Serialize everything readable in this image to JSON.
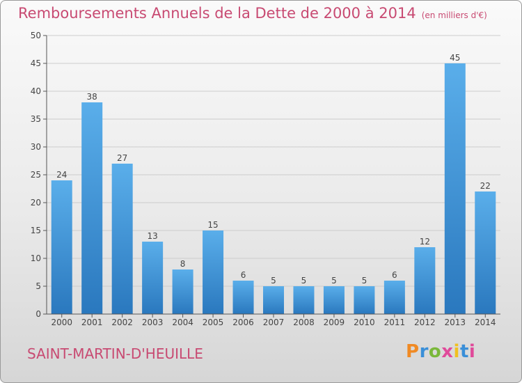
{
  "title": "Remboursements Annuels de la Dette de 2000 à 2014",
  "subtitle": "(en milliers d'€)",
  "place": "SAINT-MARTIN-D'HEUILLE",
  "logo": {
    "text": "Proxiti",
    "colors": [
      "#f08a24",
      "#3a8fd8",
      "#7ab83a",
      "#e04a9a",
      "#f0c020",
      "#3a8fd8",
      "#e04a9a"
    ]
  },
  "colors": {
    "title": "#c84a72",
    "bar_top": "#5aaeea",
    "bar_bottom": "#2a78be",
    "axis": "#555555",
    "grid": "#cccccc"
  },
  "chart_data": {
    "type": "bar",
    "title": "Remboursements Annuels de la Dette de 2000 à 2014",
    "subtitle": "(en milliers d'€)",
    "categories": [
      "2000",
      "2001",
      "2002",
      "2003",
      "2004",
      "2005",
      "2006",
      "2007",
      "2008",
      "2009",
      "2010",
      "2011",
      "2012",
      "2013",
      "2014"
    ],
    "values": [
      24,
      38,
      27,
      13,
      8,
      15,
      6,
      5,
      5,
      5,
      5,
      6,
      12,
      45,
      22
    ],
    "ylim": [
      0,
      50
    ],
    "yticks": [
      0,
      5,
      10,
      15,
      20,
      25,
      30,
      35,
      40,
      45,
      50
    ],
    "grid": true
  }
}
